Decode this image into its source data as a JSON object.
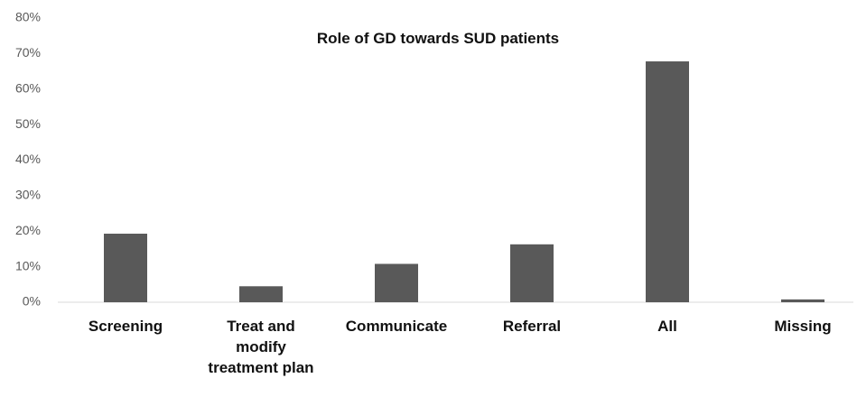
{
  "chart_data": {
    "type": "bar",
    "title": "Role of GD towards SUD patients",
    "categories": [
      "Screening",
      "Treat and modify treatment plan",
      "Communicate",
      "Referral",
      "All",
      "Missing"
    ],
    "values": [
      19.3,
      4.5,
      10.8,
      16.3,
      67.8,
      0.8
    ],
    "color": "#595959",
    "ylim": [
      0,
      80
    ],
    "yticks": [
      {
        "value": 0,
        "label": "0%"
      },
      {
        "value": 10,
        "label": "10%"
      },
      {
        "value": 20,
        "label": "20%"
      },
      {
        "value": 30,
        "label": "30%"
      },
      {
        "value": 40,
        "label": "40%"
      },
      {
        "value": 50,
        "label": "50%"
      },
      {
        "value": 60,
        "label": "60%"
      },
      {
        "value": 70,
        "label": "70%"
      },
      {
        "value": 80,
        "label": "80%"
      }
    ],
    "grid": false
  }
}
